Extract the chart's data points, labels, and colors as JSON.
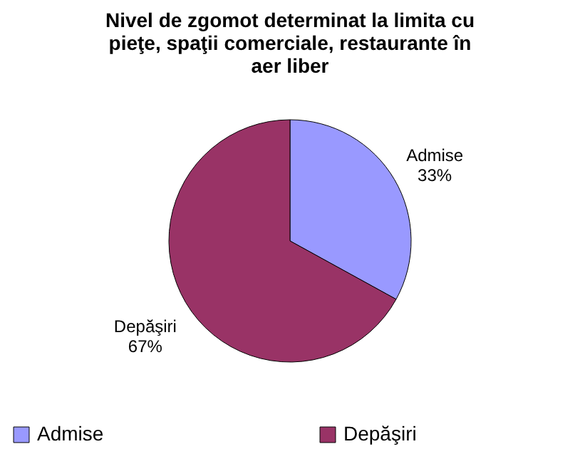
{
  "chart_data": {
    "type": "pie",
    "title": "Nivel de zgomot determinat la limita cu pieţe, spaţii comerciale, restaurante în aer liber",
    "categories": [
      "Admise",
      "Depăşiri"
    ],
    "values": [
      33,
      67
    ],
    "colors": [
      "#9999ff",
      "#993366"
    ],
    "value_labels": [
      "33%",
      "67%"
    ],
    "legend": "bottom"
  }
}
